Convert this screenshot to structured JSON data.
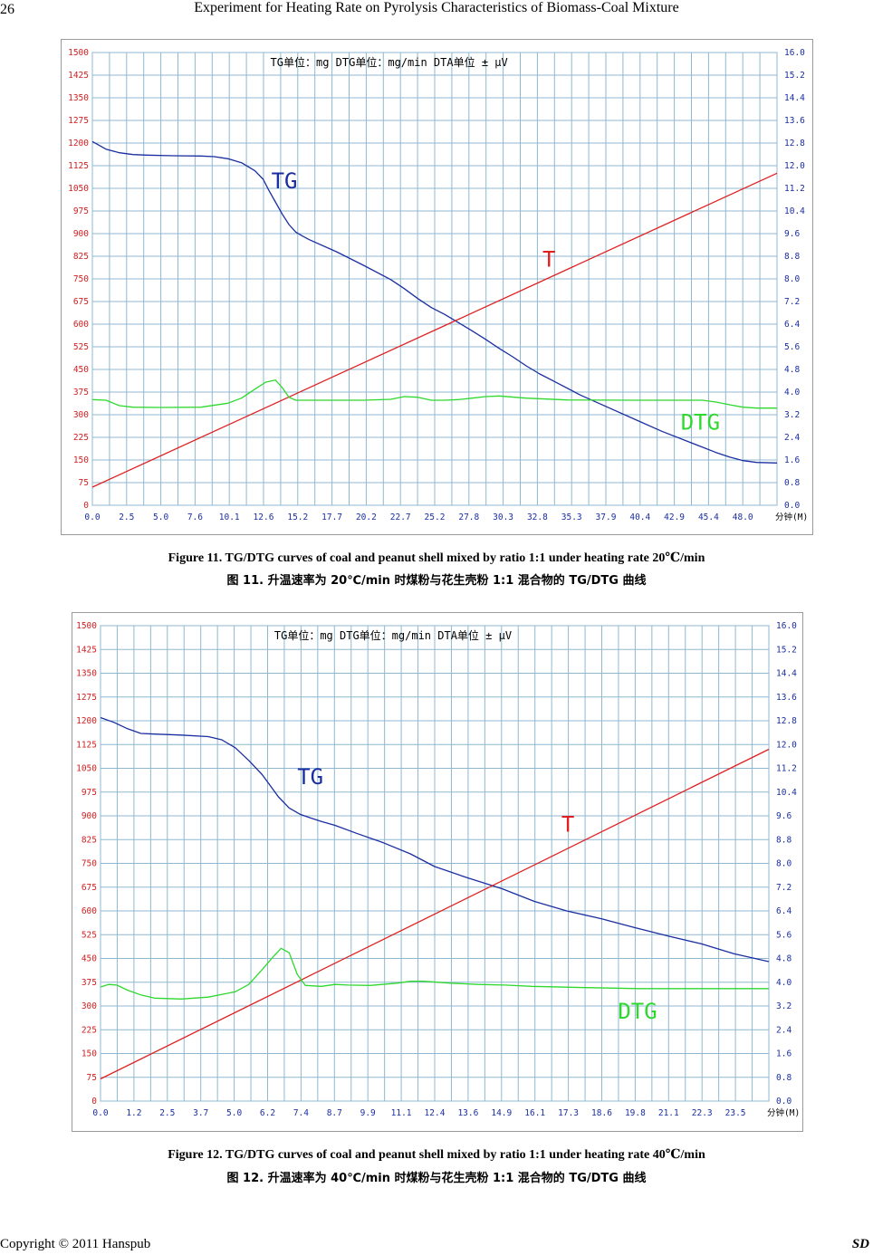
{
  "header": {
    "page_number": "26",
    "running_title": "Experiment for Heating Rate on Pyrolysis Characteristics of Biomass-Coal Mixture"
  },
  "footer": {
    "copyright": "Copyright © 2011 Hanspub",
    "journal": "SD"
  },
  "colors": {
    "grid": "#8fb8d0",
    "tg": "#1a2ea0",
    "t": "#e02020",
    "dtg": "#2ed82e",
    "left_axis": "#d02020",
    "right_axis": "#1a2ea0"
  },
  "chart_data": [
    {
      "type": "line",
      "units_text": "TG单位：mg    DTG单位：mg/min      DTA单位 ± μV",
      "x_unit_label": "分钟(M)",
      "x_ticks": [
        "0.0",
        "2.5",
        "5.0",
        "7.6",
        "10.1",
        "12.6",
        "15.2",
        "17.7",
        "20.2",
        "22.7",
        "25.2",
        "27.8",
        "30.3",
        "32.8",
        "35.3",
        "37.9",
        "40.4",
        "42.9",
        "45.4",
        "48.0"
      ],
      "xlim": [
        0,
        50.5
      ],
      "left_ticks": [
        "0",
        "75",
        "150",
        "225",
        "300",
        "375",
        "450",
        "525",
        "600",
        "675",
        "750",
        "825",
        "900",
        "975",
        "1050",
        "1125",
        "1200",
        "1275",
        "1350",
        "1425",
        "1500"
      ],
      "ylim_left": [
        0,
        1500
      ],
      "right_ticks": [
        "0.0",
        "0.8",
        "1.6",
        "2.4",
        "3.2",
        "4.0",
        "4.8",
        "5.6",
        "6.4",
        "7.2",
        "8.0",
        "8.8",
        "9.6",
        "10.4",
        "11.2",
        "12.0",
        "12.8",
        "13.6",
        "14.4",
        "15.2",
        "16.0"
      ],
      "ylim_right": [
        0,
        16
      ],
      "series": [
        {
          "name": "TG",
          "label_at": [
            13.2,
            1050
          ],
          "x": [
            0,
            1,
            2,
            3,
            4,
            6,
            8,
            9,
            10,
            11,
            12,
            12.6,
            13,
            13.5,
            14,
            14.5,
            15,
            15.5,
            16,
            18,
            20,
            22,
            23,
            24,
            25,
            26,
            27,
            28,
            29,
            30,
            31,
            32,
            33,
            34,
            36,
            38,
            40,
            42,
            44,
            46,
            47,
            48,
            49,
            50.5
          ],
          "y": [
            1205,
            1180,
            1168,
            1162,
            1160,
            1158,
            1157,
            1155,
            1148,
            1135,
            1108,
            1080,
            1045,
            1005,
            965,
            930,
            905,
            892,
            880,
            840,
            795,
            748,
            718,
            685,
            655,
            632,
            605,
            578,
            550,
            520,
            492,
            462,
            435,
            412,
            365,
            325,
            285,
            245,
            210,
            175,
            160,
            148,
            142,
            140
          ]
        },
        {
          "name": "T",
          "label_at": [
            33.2,
            790
          ],
          "x": [
            0,
            50.5
          ],
          "y": [
            60,
            1100
          ]
        },
        {
          "name": "DTG",
          "label_at": [
            43.4,
            250
          ],
          "x": [
            0,
            1,
            2,
            3,
            5,
            8,
            10,
            11,
            12,
            12.8,
            13.5,
            14,
            14.5,
            15,
            17,
            20,
            22,
            23,
            24,
            25,
            26,
            27,
            28,
            29,
            30,
            32,
            35,
            40,
            44,
            45,
            46,
            47,
            48,
            49,
            50.5
          ],
          "y": [
            350,
            348,
            330,
            325,
            324,
            325,
            338,
            355,
            385,
            408,
            415,
            390,
            358,
            348,
            348,
            348,
            351,
            360,
            358,
            348,
            348,
            350,
            355,
            360,
            362,
            355,
            349,
            348,
            348,
            348,
            342,
            333,
            325,
            322,
            322
          ]
        }
      ]
    },
    {
      "type": "line",
      "units_text": "TG单位：mg    DTG单位：mg/min      DTA单位 ± μV",
      "x_unit_label": "分钟(M)",
      "x_ticks": [
        "0.0",
        "1.2",
        "2.5",
        "3.7",
        "5.0",
        "6.2",
        "7.4",
        "8.7",
        "9.9",
        "11.1",
        "12.4",
        "13.6",
        "14.9",
        "16.1",
        "17.3",
        "18.6",
        "19.8",
        "21.1",
        "22.3",
        "23.5"
      ],
      "xlim": [
        0,
        24.8
      ],
      "left_ticks": [
        "0",
        "75",
        "150",
        "225",
        "300",
        "375",
        "450",
        "525",
        "600",
        "675",
        "750",
        "825",
        "900",
        "975",
        "1050",
        "1125",
        "1200",
        "1275",
        "1350",
        "1425",
        "1500"
      ],
      "ylim_left": [
        0,
        1500
      ],
      "right_ticks": [
        "0.0",
        "0.8",
        "1.6",
        "2.4",
        "3.2",
        "4.0",
        "4.8",
        "5.6",
        "6.4",
        "7.2",
        "8.0",
        "8.8",
        "9.6",
        "10.4",
        "11.2",
        "12.0",
        "12.8",
        "13.6",
        "14.4",
        "15.2",
        "16.0"
      ],
      "ylim_right": [
        0,
        16
      ],
      "series": [
        {
          "name": "TG",
          "label_at": [
            7.3,
            1000
          ],
          "x": [
            0,
            0.5,
            1,
            1.5,
            2,
            3,
            4,
            4.5,
            5,
            5.5,
            6,
            6.3,
            6.6,
            7,
            7.4,
            7.8,
            8.2,
            8.7,
            9.5,
            10.5,
            11.5,
            12.4,
            13.6,
            14.9,
            16.1,
            17.3,
            18.6,
            19.8,
            21.1,
            22.3,
            23.5,
            24.8
          ],
          "y": [
            1210,
            1195,
            1175,
            1160,
            1158,
            1155,
            1150,
            1140,
            1115,
            1075,
            1030,
            995,
            960,
            925,
            905,
            893,
            882,
            870,
            845,
            815,
            780,
            740,
            705,
            670,
            630,
            600,
            575,
            548,
            520,
            496,
            465,
            440
          ]
        },
        {
          "name": "T",
          "label_at": [
            17.1,
            850
          ],
          "x": [
            0,
            24.8
          ],
          "y": [
            70,
            1110
          ]
        },
        {
          "name": "DTG",
          "label_at": [
            19.2,
            260
          ],
          "x": [
            0,
            0.3,
            0.6,
            1,
            1.5,
            2,
            3,
            4,
            5,
            5.5,
            6,
            6.4,
            6.7,
            7,
            7.3,
            7.6,
            8.2,
            8.7,
            9.2,
            10,
            11,
            11.5,
            12,
            13,
            14,
            15,
            16,
            18,
            20,
            22,
            24.8
          ],
          "y": [
            360,
            368,
            366,
            350,
            335,
            325,
            322,
            328,
            345,
            368,
            415,
            455,
            482,
            468,
            400,
            365,
            362,
            368,
            366,
            365,
            372,
            378,
            378,
            372,
            368,
            366,
            362,
            358,
            355,
            355,
            355
          ]
        }
      ]
    }
  ],
  "captions": [
    {
      "en": "Figure 11. TG/DTG curves of coal and peanut shell mixed by ratio 1:1 under heating rate 20℃/min",
      "cn": "图 11.  升温速率为 20℃/min 时煤粉与花生壳粉 1:1 混合物的 TG/DTG 曲线"
    },
    {
      "en": "Figure 12. TG/DTG curves of coal and peanut shell mixed by ratio 1:1 under heating rate 40℃/min",
      "cn": "图 12.  升温速率为 40℃/min 时煤粉与花生壳粉 1:1 混合物的 TG/DTG 曲线"
    }
  ]
}
